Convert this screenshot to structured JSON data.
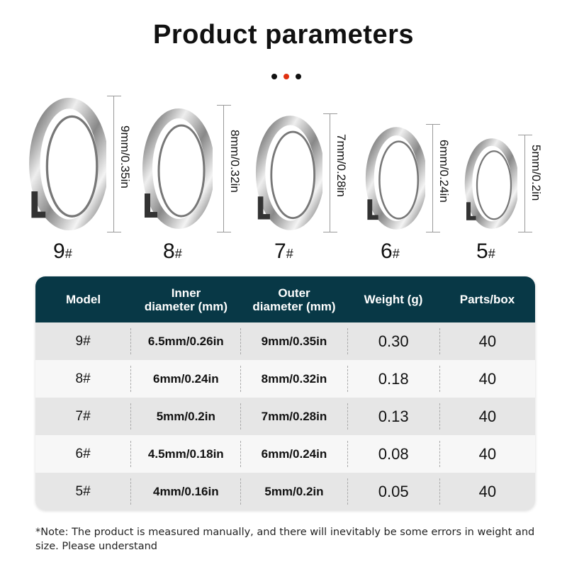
{
  "title": "Product parameters",
  "colors": {
    "header": "#083846",
    "accent_dot": "#e03010"
  },
  "rings": [
    {
      "label": "9",
      "mark": "#",
      "dimension": "9mm/0.35in"
    },
    {
      "label": "8",
      "mark": "#",
      "dimension": "8mm/0.32in"
    },
    {
      "label": "7",
      "mark": "#",
      "dimension": "7mm/0.28in"
    },
    {
      "label": "6",
      "mark": "#",
      "dimension": "6mm/0.24in"
    },
    {
      "label": "5",
      "mark": "#",
      "dimension": "5mm/0.2in"
    }
  ],
  "table": {
    "headers": [
      "Model",
      "Inner\ndiameter (mm)",
      "Outer\ndiameter (mm)",
      "Weight (g)",
      "Parts/box"
    ],
    "rows": [
      [
        "9#",
        "6.5mm/0.26in",
        "9mm/0.35in",
        "0.30",
        "40"
      ],
      [
        "8#",
        "6mm/0.24in",
        "8mm/0.32in",
        "0.18",
        "40"
      ],
      [
        "7#",
        "5mm/0.2in",
        "7mm/0.28in",
        "0.13",
        "40"
      ],
      [
        "6#",
        "4.5mm/0.18in",
        "6mm/0.24in",
        "0.08",
        "40"
      ],
      [
        "5#",
        "4mm/0.16in",
        "5mm/0.2in",
        "0.05",
        "40"
      ]
    ]
  },
  "note": "*Note: The product is measured manually, and there will inevitably be some errors in weight and size. Please understand"
}
